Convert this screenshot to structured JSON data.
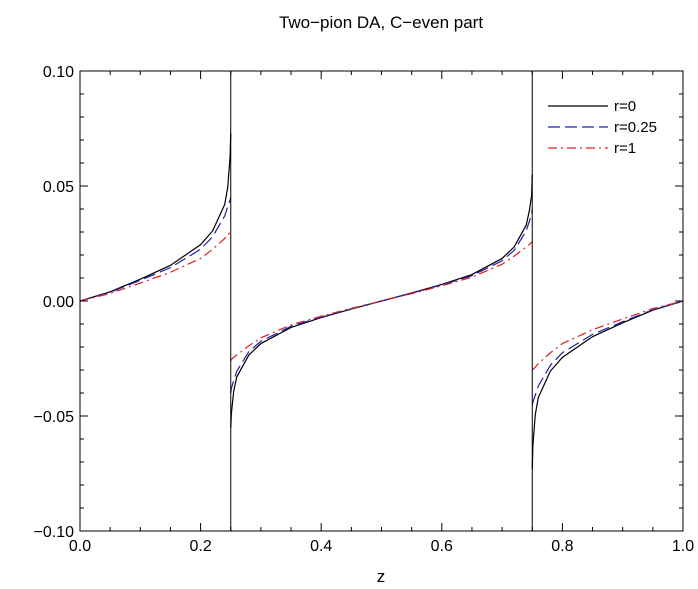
{
  "chart_data": {
    "type": "line",
    "title": "Two−pion DA, C−even part",
    "xlabel": "z",
    "ylabel": "",
    "xlim": [
      0.0,
      1.0
    ],
    "ylim": [
      -0.1,
      0.1
    ],
    "xticks": [
      0.0,
      0.2,
      0.4,
      0.6,
      0.8,
      1.0
    ],
    "xtick_labels": [
      "0.0",
      "0.2",
      "0.4",
      "0.6",
      "0.8",
      "1.0"
    ],
    "yticks": [
      -0.1,
      -0.05,
      0.0,
      0.05,
      0.1
    ],
    "ytick_labels": [
      "−0.10",
      "−0.05",
      "0.00",
      "0.05",
      "0.10"
    ],
    "grid": false,
    "legend_position": "top-right",
    "vertical_lines": [
      0.25,
      0.75
    ],
    "series": [
      {
        "name": "r=0",
        "color": "#000000",
        "dash": "solid",
        "x": [
          0.0,
          0.05,
          0.1,
          0.15,
          0.2,
          0.22,
          0.24,
          0.245,
          0.249,
          0.2499,
          0.2501,
          0.251,
          0.255,
          0.26,
          0.28,
          0.3,
          0.35,
          0.4,
          0.45,
          0.5,
          0.55,
          0.6,
          0.65,
          0.7,
          0.72,
          0.74,
          0.745,
          0.749,
          0.7499,
          0.7501,
          0.751,
          0.755,
          0.76,
          0.78,
          0.8,
          0.85,
          0.9,
          0.95,
          1.0
        ],
        "y": [
          0.0,
          0.004,
          0.0095,
          0.0155,
          0.0245,
          0.0305,
          0.042,
          0.0495,
          0.063,
          0.073,
          -0.055,
          -0.049,
          -0.039,
          -0.033,
          -0.0235,
          -0.0185,
          -0.0115,
          -0.0072,
          -0.0035,
          0.0,
          0.0035,
          0.0072,
          0.0115,
          0.0185,
          0.0235,
          0.033,
          0.039,
          0.046,
          0.055,
          -0.073,
          -0.063,
          -0.0495,
          -0.042,
          -0.0305,
          -0.0245,
          -0.0155,
          -0.0095,
          -0.004,
          0.0
        ]
      },
      {
        "name": "r=0.25",
        "color": "#1f1fa8",
        "dash": "long-dash",
        "x": [
          0.0,
          0.05,
          0.1,
          0.15,
          0.2,
          0.22,
          0.24,
          0.245,
          0.249,
          0.2499,
          0.2501,
          0.251,
          0.255,
          0.26,
          0.28,
          0.3,
          0.35,
          0.4,
          0.45,
          0.5,
          0.55,
          0.6,
          0.65,
          0.7,
          0.72,
          0.74,
          0.745,
          0.749,
          0.7499,
          0.7501,
          0.751,
          0.755,
          0.76,
          0.78,
          0.8,
          0.85,
          0.9,
          0.95,
          1.0
        ],
        "y": [
          0.0,
          0.0038,
          0.009,
          0.0145,
          0.0225,
          0.028,
          0.037,
          0.041,
          0.044,
          0.045,
          -0.04,
          -0.038,
          -0.0345,
          -0.0305,
          -0.022,
          -0.0175,
          -0.011,
          -0.007,
          -0.0034,
          0.0,
          0.0034,
          0.007,
          0.011,
          0.0175,
          0.022,
          0.0305,
          0.0345,
          0.038,
          0.04,
          -0.045,
          -0.044,
          -0.041,
          -0.037,
          -0.028,
          -0.0225,
          -0.0145,
          -0.009,
          -0.0038,
          0.0
        ]
      },
      {
        "name": "r=1",
        "color": "#e02020",
        "dash": "dash-dot",
        "x": [
          0.0,
          0.05,
          0.1,
          0.15,
          0.2,
          0.22,
          0.24,
          0.245,
          0.249,
          0.2499,
          0.2501,
          0.251,
          0.255,
          0.26,
          0.28,
          0.3,
          0.35,
          0.4,
          0.45,
          0.5,
          0.55,
          0.6,
          0.65,
          0.7,
          0.72,
          0.74,
          0.745,
          0.749,
          0.7499,
          0.7501,
          0.751,
          0.755,
          0.76,
          0.78,
          0.8,
          0.85,
          0.9,
          0.95,
          1.0
        ],
        "y": [
          0.0,
          0.0033,
          0.0078,
          0.0125,
          0.0185,
          0.0225,
          0.0272,
          0.0288,
          0.0298,
          0.03,
          -0.026,
          -0.0255,
          -0.0245,
          -0.0235,
          -0.0195,
          -0.016,
          -0.0104,
          -0.0066,
          -0.0032,
          0.0,
          0.0032,
          0.0066,
          0.0104,
          0.016,
          0.0195,
          0.0235,
          0.0245,
          0.0255,
          0.026,
          -0.03,
          -0.0298,
          -0.0288,
          -0.0272,
          -0.0225,
          -0.0185,
          -0.0125,
          -0.0078,
          -0.0033,
          0.0
        ]
      }
    ]
  }
}
